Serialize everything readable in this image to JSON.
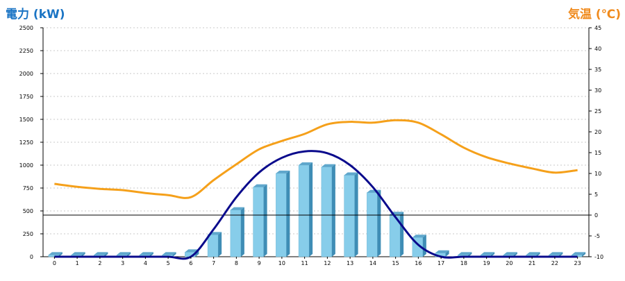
{
  "chart_data": {
    "type": "bar",
    "left_axis_title": "電力 (kW)",
    "right_axis_title": "気温 (℃)",
    "categories": [
      "0",
      "1",
      "2",
      "3",
      "4",
      "5",
      "6",
      "7",
      "8",
      "9",
      "10",
      "11",
      "12",
      "13",
      "14",
      "15",
      "16",
      "17",
      "18",
      "19",
      "20",
      "21",
      "22",
      "23"
    ],
    "y_left": {
      "min": 0,
      "max": 2500,
      "ticks": [
        0,
        250,
        500,
        750,
        1000,
        1250,
        1500,
        1750,
        2000,
        2250,
        2500
      ]
    },
    "y_right": {
      "min": -10,
      "max": 45,
      "ticks": [
        -10,
        -5,
        0,
        5,
        10,
        15,
        20,
        25,
        30,
        35,
        40,
        45
      ]
    },
    "grid": true,
    "series": [
      {
        "kind": "bar",
        "axis": "left",
        "color": "#87cdea",
        "values": [
          20,
          20,
          20,
          20,
          20,
          20,
          50,
          240,
          510,
          760,
          910,
          1000,
          980,
          890,
          700,
          460,
          210,
          40,
          20,
          20,
          20,
          20,
          20,
          20
        ]
      },
      {
        "kind": "line",
        "axis": "left",
        "color": "#0a0a8c",
        "values": [
          0,
          0,
          0,
          0,
          0,
          0,
          0,
          300,
          650,
          920,
          1080,
          1150,
          1130,
          1000,
          760,
          430,
          130,
          0,
          0,
          0,
          0,
          0,
          0,
          0
        ]
      },
      {
        "kind": "line",
        "axis": "right",
        "color": "#f5a01a",
        "values": [
          7.5,
          6.8,
          6.3,
          6.0,
          5.3,
          4.8,
          4.3,
          8.4,
          12.2,
          15.8,
          17.8,
          19.5,
          21.8,
          22.4,
          22.2,
          22.8,
          22.2,
          19.4,
          16.2,
          13.9,
          12.4,
          11.2,
          10.2,
          10.8
        ]
      }
    ],
    "colors": {
      "left_title": "#1a74c4",
      "right_title": "#f08a1c",
      "grid": "#c8c8c8",
      "axis": "#000000",
      "zero_line": "#000000"
    }
  }
}
